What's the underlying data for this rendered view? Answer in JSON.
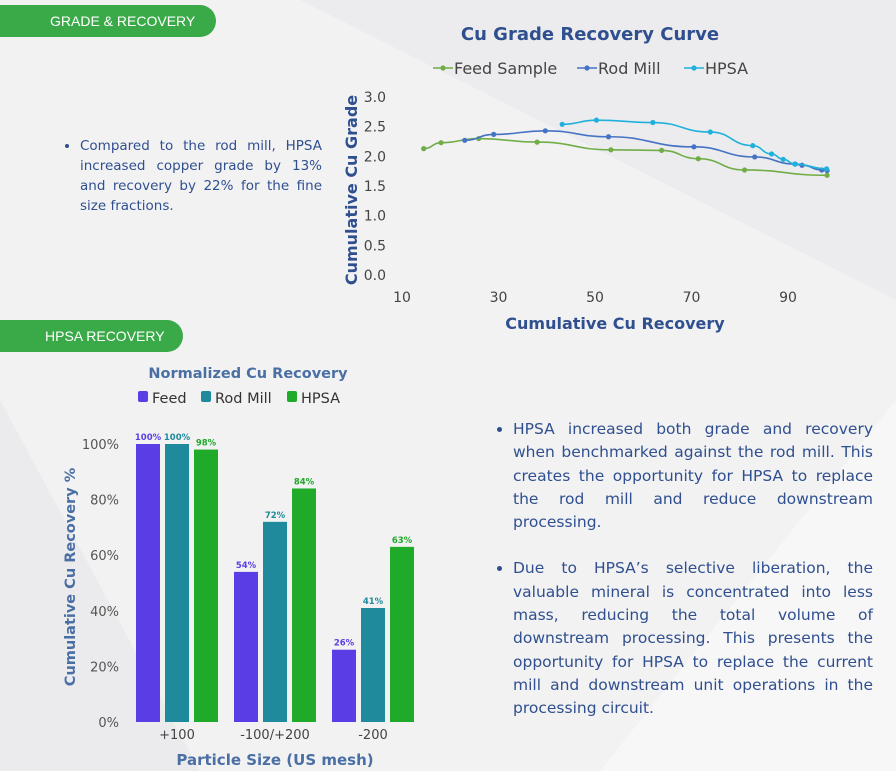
{
  "sections": {
    "grade_recovery_label": "GRADE & RECOVERY",
    "hpsa_recovery_label": "HPSA RECOVERY"
  },
  "text": {
    "bullet_top": "Compared to the rod mill, HPSA increased copper grade by 13% and recovery by 22% for the fine size fractions.",
    "bullets_right": [
      "HPSA increased both grade and recovery when benchmarked against the rod mill. This creates the opportunity for HPSA to replace the rod mill and reduce downstream processing.",
      "Due to HPSA’s selective liberation, the valuable mineral is concentrated into less mass, reducing the total volume of downstream processing. This presents the opportunity for HPSA to replace the current mill and downstream unit operations in the processing circuit."
    ]
  },
  "colors": {
    "accent_green": "#3aaa49",
    "title_blue": "#2f4f8f"
  },
  "chart_data": [
    {
      "type": "line",
      "title": "Cu Grade Recovery Curve",
      "xlabel": "Cumulative Cu Recovery",
      "ylabel": "Cumulative Cu Grade",
      "xlim": [
        10,
        100
      ],
      "ylim": [
        0,
        3.0
      ],
      "xticks": [
        "10",
        "30",
        "50",
        "70",
        "90"
      ],
      "yticks": [
        "0.0",
        "0.5",
        "1.0",
        "1.5",
        "2.0",
        "2.5",
        "3.0"
      ],
      "legend_position": "top",
      "series": [
        {
          "name": "Feed Sample",
          "color": "#70ad47",
          "x": [
            14.5,
            18.1,
            25.9,
            38,
            53.3,
            63.8,
            71.4,
            81,
            98.1
          ],
          "y": [
            2.13,
            2.23,
            2.3,
            2.24,
            2.11,
            2.1,
            1.96,
            1.77,
            1.68
          ]
        },
        {
          "name": "Rod Mill",
          "color": "#4472c4",
          "x": [
            23,
            29,
            39.7,
            52.8,
            70.5,
            83.1,
            91.5,
            92.9,
            97,
            98.1
          ],
          "y": [
            2.27,
            2.37,
            2.43,
            2.33,
            2.16,
            1.99,
            1.87,
            1.85,
            1.77,
            1.76
          ]
        },
        {
          "name": "HPSA",
          "color": "#1fb1dc",
          "x": [
            43.2,
            50.3,
            62,
            73.9,
            82.7,
            86.6,
            89,
            91.4,
            98
          ],
          "y": [
            2.54,
            2.61,
            2.57,
            2.41,
            2.18,
            2.04,
            1.95,
            1.87,
            1.79
          ]
        }
      ]
    },
    {
      "type": "bar",
      "title": "Normalized Cu Recovery",
      "xlabel": "Particle Size (US mesh)",
      "ylabel": "Cumulative Cu Recovery %",
      "categories": [
        "+100",
        "-100/+200",
        "-200"
      ],
      "ylim": [
        0,
        100
      ],
      "yticks": [
        "0%",
        "20%",
        "40%",
        "60%",
        "80%",
        "100%"
      ],
      "legend_position": "top",
      "series": [
        {
          "name": "Feed",
          "color": "#5b3de6",
          "values": [
            100,
            54,
            26
          ],
          "labels": [
            "100%",
            "54%",
            "26%"
          ]
        },
        {
          "name": "Rod Mill",
          "color": "#1e8a9c",
          "values": [
            100,
            72,
            41
          ],
          "labels": [
            "100%",
            "72%",
            "41%"
          ]
        },
        {
          "name": "HPSA",
          "color": "#1faa2a",
          "values": [
            98,
            84,
            63
          ],
          "labels": [
            "98%",
            "84%",
            "63%"
          ]
        }
      ]
    }
  ]
}
